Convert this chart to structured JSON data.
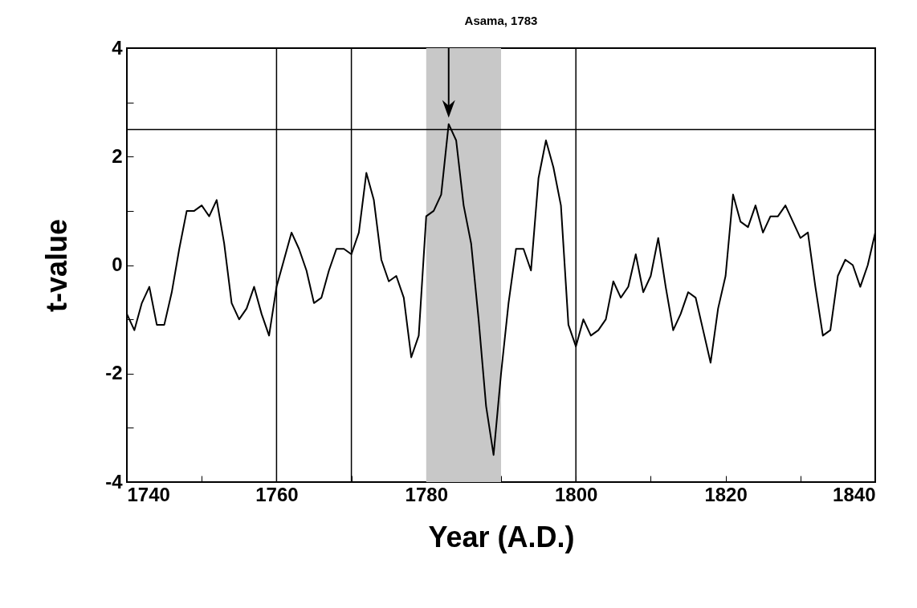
{
  "chart_data": {
    "type": "line",
    "title": "Asama, 1783",
    "xlabel": "Year (A.D.)",
    "ylabel": "t-value",
    "x": [
      1740,
      1741,
      1742,
      1743,
      1744,
      1745,
      1746,
      1747,
      1748,
      1749,
      1750,
      1751,
      1752,
      1753,
      1754,
      1755,
      1756,
      1757,
      1758,
      1759,
      1760,
      1761,
      1762,
      1763,
      1764,
      1765,
      1766,
      1767,
      1768,
      1769,
      1770,
      1771,
      1772,
      1773,
      1774,
      1775,
      1776,
      1777,
      1778,
      1779,
      1780,
      1781,
      1782,
      1783,
      1784,
      1785,
      1786,
      1787,
      1788,
      1789,
      1790,
      1791,
      1792,
      1793,
      1794,
      1795,
      1796,
      1797,
      1798,
      1799,
      1800,
      1801,
      1802,
      1803,
      1804,
      1805,
      1806,
      1807,
      1808,
      1809,
      1810,
      1811,
      1812,
      1813,
      1814,
      1815,
      1816,
      1817,
      1818,
      1819,
      1820,
      1821,
      1822,
      1823,
      1824,
      1825,
      1826,
      1827,
      1828,
      1829,
      1830,
      1831,
      1832,
      1833,
      1834,
      1835,
      1836,
      1837,
      1838,
      1839,
      1840
    ],
    "series": [
      {
        "color": "#000000",
        "values": [
          -0.9,
          -1.2,
          -0.7,
          -0.4,
          -1.1,
          -1.1,
          -0.5,
          0.3,
          1.0,
          1.0,
          1.1,
          0.9,
          1.2,
          0.4,
          -0.7,
          -1.0,
          -0.8,
          -0.4,
          -0.9,
          -1.3,
          -0.4,
          0.1,
          0.6,
          0.3,
          -0.1,
          -0.7,
          -0.6,
          -0.1,
          0.3,
          0.3,
          0.2,
          0.6,
          1.7,
          1.2,
          0.1,
          -0.3,
          -0.2,
          -0.6,
          -1.7,
          -1.3,
          0.9,
          1.0,
          1.3,
          2.6,
          2.3,
          1.1,
          0.4,
          -1.0,
          -2.6,
          -3.5,
          -2.0,
          -0.7,
          0.3,
          0.3,
          -0.1,
          1.6,
          2.3,
          1.8,
          1.1,
          -1.1,
          -1.5,
          -1.0,
          -1.3,
          -1.2,
          -1.0,
          -0.3,
          -0.6,
          -0.4,
          0.2,
          -0.5,
          -0.2,
          0.5,
          -0.4,
          -1.2,
          -0.9,
          -0.5,
          -0.6,
          -1.2,
          -1.8,
          -0.8,
          -0.2,
          1.3,
          0.8,
          0.7,
          1.1,
          0.6,
          0.9,
          0.9,
          1.1,
          0.8,
          0.5,
          0.6,
          -0.4,
          -1.3,
          -1.2,
          -0.2,
          0.1,
          0.0,
          -0.4,
          0.0,
          0.6
        ]
      }
    ],
    "xlim": [
      1740,
      1840
    ],
    "xticks": [
      1740,
      {
        "value": 1750,
        "label": null
      },
      1760,
      {
        "value": 1770,
        "label": null
      },
      1780,
      {
        "value": 1790,
        "label": null
      },
      1800,
      {
        "value": 1810,
        "label": null
      },
      1820,
      {
        "value": 1830,
        "label": null
      },
      1840
    ],
    "ylim": [
      -4,
      4
    ],
    "yticks": [
      -4,
      {
        "value": -3,
        "label": null
      },
      -2,
      {
        "value": -1,
        "label": null
      },
      0,
      {
        "value": 1,
        "label": null
      },
      2,
      {
        "value": 3,
        "label": null
      },
      4
    ],
    "grid": false,
    "marker": "none",
    "line_style": "solid",
    "ref_lines": [
      {
        "axis": "y",
        "value": 2.5
      },
      {
        "axis": "x",
        "value": 1760
      },
      {
        "axis": "x",
        "value": 1770
      },
      {
        "axis": "x",
        "value": 1800
      }
    ],
    "bands": [
      {
        "axis": "x",
        "from": 1780,
        "to": 1790,
        "color": "#c8c8c8"
      }
    ]
  }
}
